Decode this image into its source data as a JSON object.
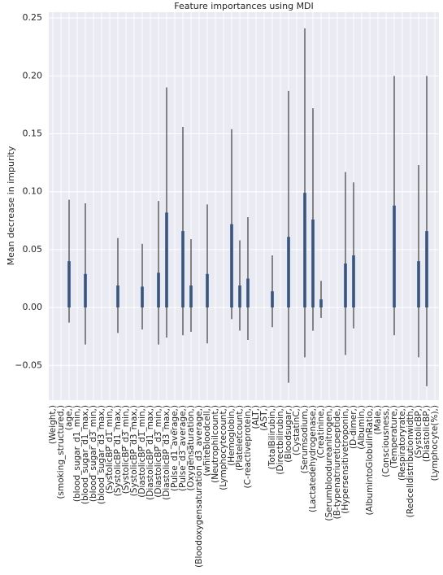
{
  "chart_data": {
    "type": "bar",
    "title": "Feature importances using MDI",
    "y_label": "Mean decrease in impurity",
    "categories": [
      "(Weight,)",
      "(smoking_structured,)",
      "(age,)",
      "(blood_sugar_d1_min,)",
      "(blood_sugar_d1_max,)",
      "(blood_sugar_d3_min,)",
      "(blood_sugar_d3_max,)",
      "(SystolicBP_d1_min,)",
      "(SystolicBP_d1_max,)",
      "(SystolicBP_d3_min,)",
      "(SystolicBP_d3_max,)",
      "(DiastolicBP_d1_min,)",
      "(DiastolicBP_d1_max,)",
      "(DiastolicBP_d3_min,)",
      "(DiastolicBP_d3_max,)",
      "(Pulse_d1_average,)",
      "(Pulse_d3_average,)",
      "(Oxygensaturation,)",
      "(Bloodoxygensaturation_d3_average,)",
      "(whitebloodcell,)",
      "(Neutrophilcount,)",
      "(Lymphocytecount,)",
      "(Hemoglobin,)",
      "(Plateletcount,)",
      "(C-reactiveprotein,)",
      "(ALT,)",
      "(AST,)",
      "(TotalBilirubin,)",
      "(Directbilirubin,)",
      "(Bloodsugar,)",
      "(CystatinC,)",
      "(Serumsodium,)",
      "(Lactatedehydrogenase,)",
      "(Creatinine,)",
      "(Serumbloodureanitrogen,)",
      "(B-typenatriureticpeptide,)",
      "(Hypersensitivetroponin,)",
      "(D-dimer,)",
      "(Albumin,)",
      "(AlbumintoGlobulinRatio,)",
      "(Male,)",
      "(Consciousness,)",
      "(Temperature,)",
      "(Respiratoryrate,)",
      "(Redcelldistributionwidth,)",
      "(SystolicBP,)",
      "(DiastolicBP,)",
      "(Lymphocyte(%),)"
    ],
    "values": [
      0,
      0,
      0.04,
      0,
      0.029,
      0,
      0,
      0,
      0.019,
      0,
      0,
      0.018,
      0,
      0.03,
      0.082,
      0,
      0.066,
      0.019,
      0,
      0.029,
      0,
      0,
      0.072,
      0.019,
      0.025,
      0,
      0,
      0.014,
      0,
      0.061,
      0,
      0.099,
      0.076,
      0.007,
      0,
      0,
      0.038,
      0.045,
      0,
      0,
      0,
      0,
      0.088,
      0,
      0,
      0.04,
      0.066,
      0
    ],
    "errors": [
      0,
      0,
      0.053,
      0,
      0.061,
      0,
      0,
      0,
      0.041,
      0,
      0,
      0.037,
      0,
      0.062,
      0.108,
      0,
      0.09,
      0.04,
      0,
      0.06,
      0,
      0,
      0.082,
      0.039,
      0.053,
      0,
      0,
      0.031,
      0,
      0.126,
      0,
      0.142,
      0.096,
      0.016,
      0,
      0,
      0.079,
      0.063,
      0,
      0,
      0,
      0,
      0.112,
      0,
      0,
      0.083,
      0.134,
      0
    ],
    "color": "#4c72b0",
    "error_color": "#3f3f3f",
    "ylim": [
      -0.08,
      0.255
    ],
    "yticks": [
      {
        "value": -0.05,
        "label": "−0.05"
      },
      {
        "value": 0,
        "label": "0.00"
      },
      {
        "value": 0.05,
        "label": "0.05"
      },
      {
        "value": 0.1,
        "label": "0.10"
      },
      {
        "value": 0.15,
        "label": "0.15"
      },
      {
        "value": 0.2,
        "label": "0.20"
      },
      {
        "value": 0.25,
        "label": "0.25"
      }
    ],
    "grid": true
  }
}
